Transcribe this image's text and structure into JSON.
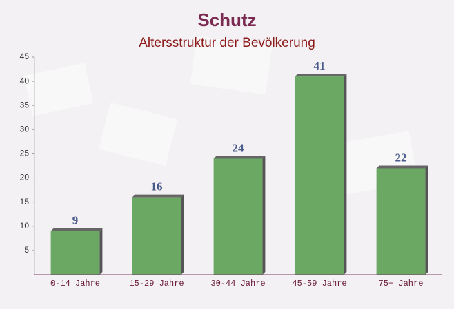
{
  "chart_data": {
    "type": "bar",
    "title": "Schutz",
    "subtitle": "Altersstruktur der Bevölkerung",
    "categories": [
      "0-14 Jahre",
      "15-29 Jahre",
      "30-44 Jahre",
      "45-59 Jahre",
      "75+ Jahre"
    ],
    "values": [
      9,
      16,
      24,
      41,
      22
    ],
    "color": "#6aa864",
    "ylim": [
      0,
      45
    ],
    "yticks": [
      5,
      10,
      15,
      20,
      25,
      30,
      35,
      40,
      45
    ],
    "grid": false
  }
}
